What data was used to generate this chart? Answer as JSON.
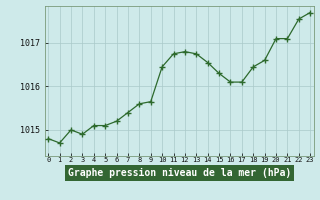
{
  "x": [
    0,
    1,
    2,
    3,
    4,
    5,
    6,
    7,
    8,
    9,
    10,
    11,
    12,
    13,
    14,
    15,
    16,
    17,
    18,
    19,
    20,
    21,
    22,
    23
  ],
  "y": [
    1014.8,
    1014.7,
    1015.0,
    1014.9,
    1015.1,
    1015.1,
    1015.2,
    1015.4,
    1015.6,
    1015.65,
    1016.45,
    1016.75,
    1016.8,
    1016.75,
    1016.55,
    1016.3,
    1016.1,
    1016.1,
    1016.45,
    1016.6,
    1017.1,
    1017.1,
    1017.55,
    1017.7
  ],
  "ylim": [
    1014.4,
    1017.85
  ],
  "yticks": [
    1015,
    1016,
    1017
  ],
  "xlabel": "Graphe pression niveau de la mer (hPa)",
  "line_color": "#2d6a2d",
  "marker_color": "#2d6a2d",
  "bg_color": "#ceeaea",
  "grid_color": "#aacaca",
  "spine_color": "#7a9a7a",
  "xlabel_color": "#ffffff",
  "xlabel_bg": "#336633"
}
